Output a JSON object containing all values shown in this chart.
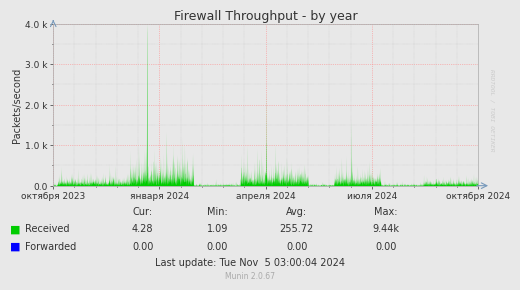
{
  "title": "Firewall Throughput - by year",
  "ylabel": "Packets/second",
  "background_color": "#e8e8e8",
  "plot_bg_color": "#e8e8e8",
  "ylim": [
    0,
    4000
  ],
  "yticks": [
    0.0,
    1000,
    2000,
    3000,
    4000
  ],
  "ytick_labels": [
    "0.0",
    "1.0 k",
    "2.0 k",
    "3.0 k",
    "4.0 k"
  ],
  "xtick_labels": [
    "октября 2023",
    "января 2024",
    "апреля 2024",
    "июля 2024",
    "октября 2024"
  ],
  "received_color": "#00cc00",
  "forwarded_color": "#0000ff",
  "watermark": "RRDTOOL / TOBI OETIKER",
  "munin_version": "Munin 2.0.67",
  "legend": [
    {
      "label": "Received",
      "color": "#00cc00"
    },
    {
      "label": "Forwarded",
      "color": "#0000ff"
    }
  ],
  "stats": {
    "headers": [
      "Cur:",
      "Min:",
      "Avg:",
      "Max:"
    ],
    "received": [
      "4.28",
      "1.09",
      "255.72",
      "9.44k"
    ],
    "forwarded": [
      "0.00",
      "0.00",
      "0.00",
      "0.00"
    ]
  },
  "last_update": "Last update: Tue Nov  5 03:00:04 2024",
  "title_color": "#333333",
  "axis_color": "#333333",
  "tick_color": "#333333"
}
